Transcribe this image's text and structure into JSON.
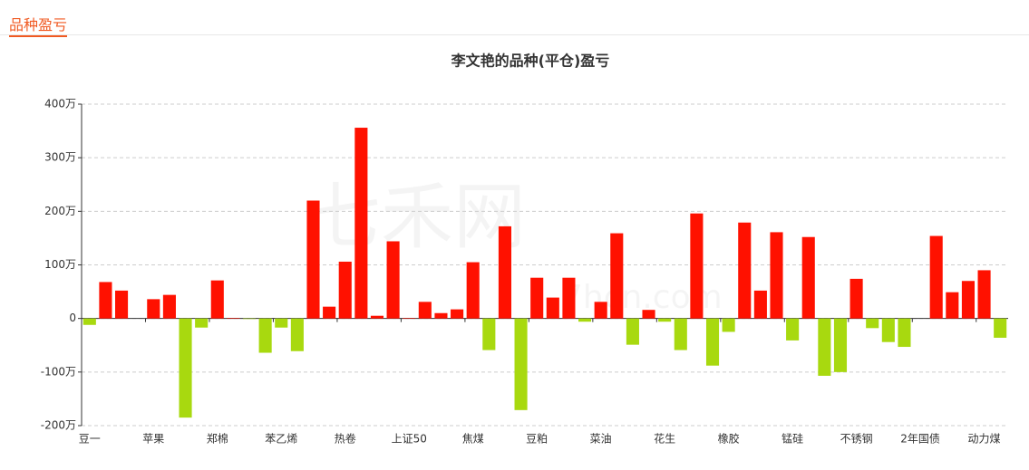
{
  "header": {
    "tab": "品种盈亏"
  },
  "watermark": {
    "brand": "七禾网",
    "site": "7hcn.com"
  },
  "chart_data": {
    "type": "bar",
    "title": "李文艳的品种(平仓)盈亏",
    "categories": [
      "豆一",
      null,
      null,
      null,
      "苹果",
      null,
      null,
      null,
      "郑棉",
      null,
      null,
      null,
      "苯乙烯",
      null,
      null,
      null,
      "热卷",
      null,
      null,
      null,
      "上证50",
      null,
      null,
      null,
      "焦煤",
      null,
      null,
      null,
      "豆粕",
      null,
      null,
      null,
      "菜油",
      null,
      null,
      null,
      "花生",
      null,
      null,
      null,
      "橡胶",
      null,
      null,
      null,
      "锰硅",
      null,
      null,
      null,
      "不锈钢",
      null,
      null,
      null,
      "2年国债",
      null,
      null,
      null,
      "动力煤",
      null
    ],
    "values": [
      -12,
      68,
      52,
      0,
      36,
      44,
      -185,
      -17,
      71,
      1,
      -1,
      -64,
      -17,
      -61,
      220,
      22,
      106,
      356,
      5,
      144,
      1,
      31,
      10,
      17,
      105,
      -59,
      172,
      -171,
      76,
      39,
      76,
      -6,
      31,
      159,
      -49,
      16,
      -6,
      -59,
      196,
      -88,
      -25,
      179,
      52,
      161,
      -41,
      152,
      -107,
      -100,
      74,
      -18,
      -44,
      -53,
      0,
      154,
      49,
      70,
      90,
      -36
    ],
    "positive_color": "#ff1100",
    "negative_color": "#a8d90f",
    "ylim": [
      -200,
      400
    ],
    "yticks": [
      {
        "value": -200,
        "label": "-200万"
      },
      {
        "value": -100,
        "label": "-100万"
      },
      0,
      {
        "value": 100,
        "label": "100万"
      },
      {
        "value": 200,
        "label": "200万"
      },
      {
        "value": 300,
        "label": "300万"
      },
      {
        "value": 400,
        "label": "400万"
      }
    ],
    "grid": true
  }
}
